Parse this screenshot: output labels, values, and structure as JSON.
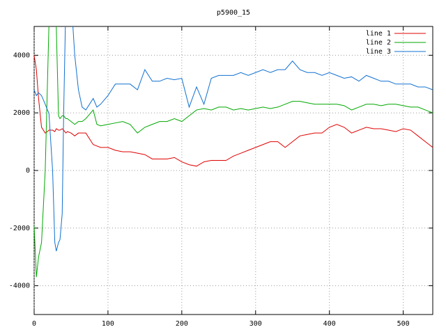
{
  "chart_data": {
    "type": "line",
    "title": "p5900_15",
    "x": [
      0,
      3,
      6,
      10,
      15,
      18,
      20,
      25,
      28,
      30,
      33,
      35,
      38,
      40,
      43,
      45,
      50,
      55,
      60,
      65,
      70,
      80,
      85,
      90,
      100,
      110,
      120,
      130,
      140,
      150,
      160,
      170,
      180,
      190,
      200,
      210,
      220,
      230,
      240,
      250,
      260,
      270,
      280,
      290,
      300,
      310,
      320,
      330,
      340,
      350,
      360,
      370,
      380,
      390,
      400,
      410,
      420,
      430,
      440,
      450,
      460,
      470,
      480,
      490,
      500,
      510,
      520,
      530,
      540
    ],
    "series": [
      {
        "name": "line 1",
        "color": "#e00000",
        "values": [
          4000,
          3500,
          2500,
          1500,
          1300,
          1350,
          1400,
          1400,
          1350,
          1450,
          1400,
          1400,
          1450,
          1400,
          1300,
          1350,
          1300,
          1200,
          1300,
          1300,
          1300,
          900,
          850,
          800,
          800,
          700,
          650,
          650,
          600,
          550,
          400,
          400,
          400,
          450,
          300,
          200,
          150,
          300,
          350,
          350,
          350,
          500,
          600,
          700,
          800,
          900,
          1000,
          1000,
          800,
          1000,
          1200,
          1250,
          1300,
          1300,
          1500,
          1600,
          1500,
          1300,
          1400,
          1500,
          1450,
          1450,
          1400,
          1350,
          1450,
          1400,
          1200,
          1000,
          800
        ]
      },
      {
        "name": "line 2",
        "color": "#00a800",
        "values": [
          -1900,
          -3700,
          -3000,
          -2500,
          0,
          3000,
          5000,
          6000,
          6000,
          5000,
          1900,
          1800,
          1900,
          1900,
          1800,
          1800,
          1700,
          1600,
          1700,
          1700,
          1800,
          2100,
          1600,
          1550,
          1600,
          1650,
          1700,
          1600,
          1300,
          1500,
          1600,
          1700,
          1700,
          1800,
          1700,
          1900,
          2100,
          2150,
          2100,
          2200,
          2200,
          2100,
          2150,
          2100,
          2150,
          2200,
          2150,
          2200,
          2300,
          2400,
          2400,
          2350,
          2300,
          2300,
          2300,
          2300,
          2250,
          2100,
          2200,
          2300,
          2300,
          2250,
          2300,
          2300,
          2250,
          2200,
          2200,
          2100,
          2000
        ]
      },
      {
        "name": "line 3",
        "color": "#1070d0",
        "values": [
          2800,
          2600,
          2700,
          2600,
          2300,
          2100,
          2000,
          0,
          -2500,
          -2800,
          -2500,
          -2400,
          -1500,
          2000,
          6000,
          6000,
          6000,
          4000,
          2800,
          2200,
          2100,
          2500,
          2200,
          2300,
          2600,
          3000,
          3000,
          3000,
          2800,
          3500,
          3100,
          3100,
          3200,
          3150,
          3200,
          2200,
          2900,
          2300,
          3200,
          3300,
          3300,
          3300,
          3400,
          3300,
          3400,
          3500,
          3400,
          3500,
          3500,
          3800,
          3500,
          3400,
          3400,
          3300,
          3400,
          3300,
          3200,
          3250,
          3100,
          3300,
          3200,
          3100,
          3100,
          3000,
          3000,
          3000,
          2900,
          2900,
          2800
        ]
      }
    ],
    "xlim": [
      0,
      540
    ],
    "ylim": [
      -5000,
      5000
    ],
    "xticks": [
      0,
      100,
      200,
      300,
      400,
      500
    ],
    "yticks": [
      -4000,
      -2000,
      0,
      2000,
      4000
    ],
    "grid": true,
    "legend": "top-right"
  }
}
